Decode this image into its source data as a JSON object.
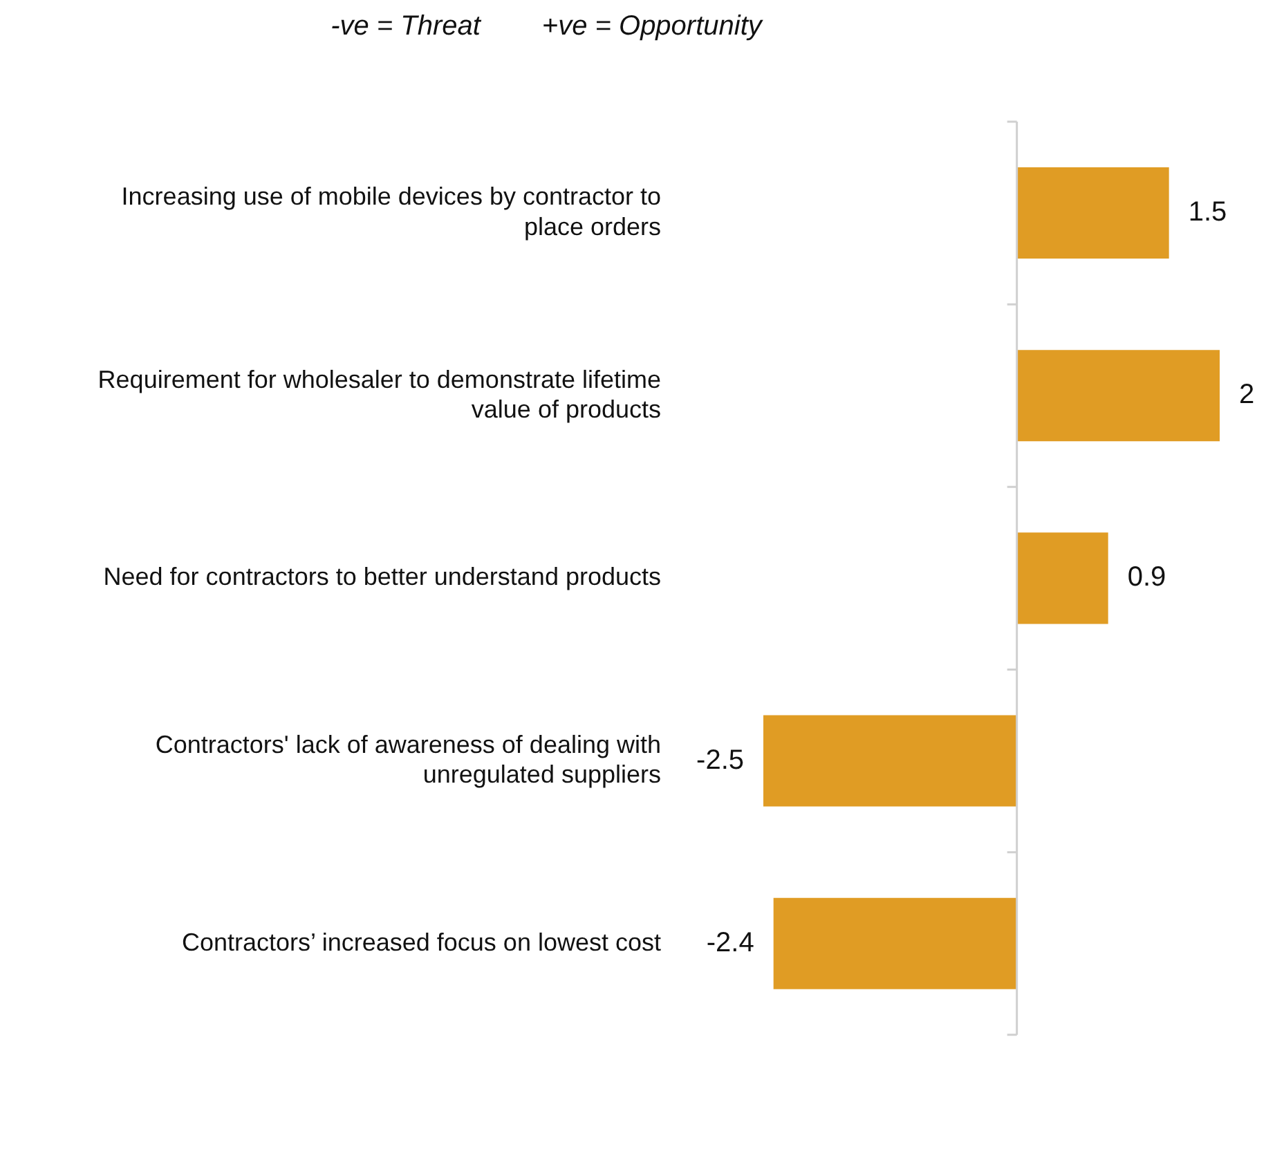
{
  "chart_data": {
    "type": "bar",
    "orientation": "horizontal",
    "title": "-ve = Threat        +ve = Opportunity",
    "categories": [
      "Increasing use of mobile devices by contractor to place orders",
      "Requirement for wholesaler to demonstrate lifetime value of products",
      "Need for contractors to better understand products",
      "Contractors' lack of awareness of dealing with unregulated suppliers",
      "Contractors’ increased focus on lowest cost"
    ],
    "values": [
      1.5,
      2,
      0.9,
      -2.5,
      -2.4
    ],
    "color": "#e09c24",
    "data_labels": true,
    "legend": false,
    "tick_labels": "y"
  }
}
